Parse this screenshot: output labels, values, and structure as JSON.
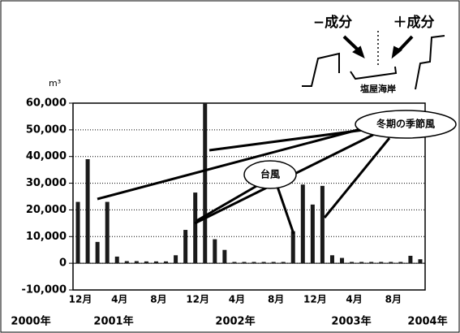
{
  "chart_data": {
    "type": "bar",
    "unit": "m³",
    "categories": [
      "12月",
      null,
      null,
      null,
      "4月",
      null,
      null,
      null,
      "8月",
      null,
      null,
      null,
      "12月",
      null,
      null,
      null,
      "4月",
      null,
      null,
      null,
      "8月",
      null,
      null,
      null,
      "12月",
      null,
      null,
      null,
      "4月",
      null,
      null,
      null,
      "8月",
      null,
      null,
      null
    ],
    "values": [
      23000,
      39000,
      8000,
      23000,
      2500,
      800,
      800,
      700,
      700,
      700,
      3000,
      12500,
      26500,
      60000,
      9000,
      5000,
      500,
      500,
      500,
      500,
      500,
      500,
      12000,
      29500,
      22000,
      29000,
      3000,
      2000,
      500,
      500,
      500,
      500,
      500,
      500,
      2800,
      1500
    ],
    "color": "#1a1a1a",
    "ylim": [
      -10000,
      60000
    ],
    "yticks": [
      {
        "value": -10000,
        "label": "-10,000"
      },
      0,
      {
        "value": 10000,
        "label": "10,000"
      },
      {
        "value": 20000,
        "label": "20,000"
      },
      {
        "value": 30000,
        "label": "30,000"
      },
      {
        "value": 40000,
        "label": "40,000"
      },
      {
        "value": 50000,
        "label": "50,000"
      },
      {
        "value": 60000,
        "label": "60,000"
      }
    ],
    "grid": true,
    "year_labels": [
      "2000年",
      "2001年",
      "2002年",
      "2003年",
      "2004年"
    ],
    "annotations": {
      "minus": "−成分",
      "plus": "＋成分",
      "site": "塩屋海岸",
      "winter": "冬期の季節風",
      "typhoon": "台風"
    }
  }
}
